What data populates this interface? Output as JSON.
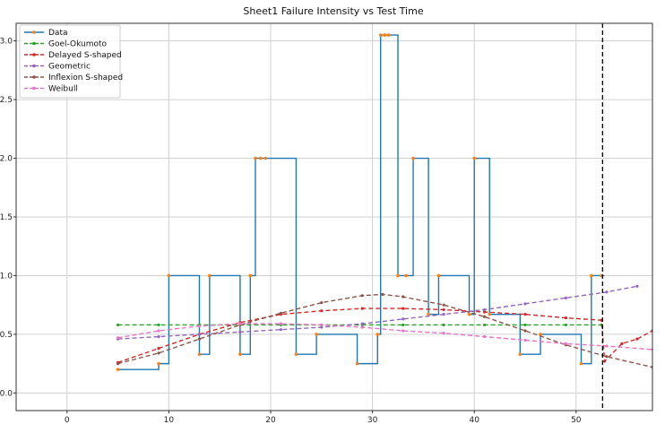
{
  "chart_data": {
    "type": "line",
    "title": "Sheet1 Failure Intensity vs Test Time",
    "xlabel": "",
    "ylabel": "",
    "xlim": [
      -5,
      57.5
    ],
    "ylim": [
      -0.15,
      3.15
    ],
    "x_ticks": [
      0,
      10,
      20,
      30,
      40,
      50
    ],
    "y_ticks": [
      0.0,
      0.5,
      1.0,
      1.5,
      2.0,
      2.5,
      3.0
    ],
    "x_tick_labels": [
      "0",
      "10",
      "20",
      "30",
      "40",
      "50"
    ],
    "y_tick_labels": [
      "0.0",
      "0.5",
      "1.0",
      "1.5",
      "2.0",
      "2.5",
      "3.0"
    ],
    "grid": true,
    "legend_position": "top-left",
    "vertical_line": {
      "x": 52.6,
      "style": "dashed",
      "color": "#000000"
    },
    "series": [
      {
        "name": "Data",
        "style": "step",
        "color": "#1f77b4",
        "marker_color": "#ff7f0e",
        "points": [
          [
            5,
            0.2
          ],
          [
            9,
            0.25
          ],
          [
            10,
            1.0
          ],
          [
            13,
            0.33
          ],
          [
            14,
            1.0
          ],
          [
            17,
            0.33
          ],
          [
            18,
            1.0
          ],
          [
            18.5,
            2.0
          ],
          [
            19,
            2.0
          ],
          [
            19.5,
            2.0
          ],
          [
            22.5,
            0.33
          ],
          [
            24.5,
            0.5
          ],
          [
            28.5,
            0.25
          ],
          [
            30.5,
            0.5
          ],
          [
            30.8,
            3.05
          ],
          [
            31.2,
            3.05
          ],
          [
            31.6,
            3.05
          ],
          [
            32.5,
            1.0
          ],
          [
            33.3,
            1.0
          ],
          [
            34,
            2.0
          ],
          [
            35.5,
            0.67
          ],
          [
            36.5,
            1.0
          ],
          [
            39.5,
            0.67
          ],
          [
            40,
            2.0
          ],
          [
            41.5,
            0.67
          ],
          [
            44.5,
            0.33
          ],
          [
            46.5,
            0.5
          ],
          [
            50.5,
            0.25
          ],
          [
            51.5,
            1.0
          ],
          [
            52.5,
            1.0
          ]
        ]
      },
      {
        "name": "Goel-Okumoto",
        "style": "dashed",
        "color": "#2ca02c",
        "points": [
          [
            5,
            0.58
          ],
          [
            9,
            0.58
          ],
          [
            13,
            0.58
          ],
          [
            17,
            0.58
          ],
          [
            21,
            0.58
          ],
          [
            25,
            0.58
          ],
          [
            29,
            0.58
          ],
          [
            33,
            0.58
          ],
          [
            37,
            0.58
          ],
          [
            41,
            0.58
          ],
          [
            45,
            0.58
          ],
          [
            49,
            0.58
          ],
          [
            52.5,
            0.58
          ]
        ]
      },
      {
        "name": "Delayed S-shaped",
        "style": "dashed",
        "color": "#d62728",
        "points": [
          [
            5,
            0.26
          ],
          [
            9,
            0.38
          ],
          [
            13,
            0.5
          ],
          [
            17,
            0.6
          ],
          [
            21,
            0.67
          ],
          [
            25,
            0.7
          ],
          [
            29,
            0.72
          ],
          [
            33,
            0.72
          ],
          [
            37,
            0.71
          ],
          [
            41,
            0.69
          ],
          [
            45,
            0.67
          ],
          [
            49,
            0.64
          ],
          [
            52.5,
            0.62
          ],
          [
            52.8,
            0.27
          ],
          [
            54.5,
            0.42
          ],
          [
            56,
            0.46
          ],
          [
            57.5,
            0.53
          ]
        ]
      },
      {
        "name": "Geometric",
        "style": "dashed",
        "color": "#9467bd",
        "points": [
          [
            5,
            0.46
          ],
          [
            9,
            0.48
          ],
          [
            13,
            0.5
          ],
          [
            17,
            0.52
          ],
          [
            21,
            0.54
          ],
          [
            25,
            0.56
          ],
          [
            29,
            0.59
          ],
          [
            33,
            0.63
          ],
          [
            37,
            0.67
          ],
          [
            41,
            0.71
          ],
          [
            45,
            0.76
          ],
          [
            49,
            0.81
          ],
          [
            53,
            0.86
          ],
          [
            56,
            0.91
          ]
        ]
      },
      {
        "name": "Inflexion S-shaped",
        "style": "dashed",
        "color": "#8c564b",
        "points": [
          [
            5,
            0.25
          ],
          [
            9,
            0.34
          ],
          [
            13,
            0.46
          ],
          [
            17,
            0.58
          ],
          [
            21,
            0.68
          ],
          [
            25,
            0.77
          ],
          [
            29,
            0.83
          ],
          [
            31,
            0.84
          ],
          [
            33,
            0.82
          ],
          [
            37,
            0.75
          ],
          [
            41,
            0.65
          ],
          [
            45,
            0.53
          ],
          [
            49,
            0.41
          ],
          [
            53,
            0.31
          ],
          [
            57.5,
            0.22
          ]
        ]
      },
      {
        "name": "Weibull",
        "style": "dashed",
        "color": "#e377c2",
        "points": [
          [
            5,
            0.47
          ],
          [
            9,
            0.53
          ],
          [
            13,
            0.57
          ],
          [
            17,
            0.59
          ],
          [
            21,
            0.59
          ],
          [
            25,
            0.58
          ],
          [
            29,
            0.56
          ],
          [
            33,
            0.53
          ],
          [
            37,
            0.51
          ],
          [
            41,
            0.48
          ],
          [
            45,
            0.45
          ],
          [
            49,
            0.42
          ],
          [
            53,
            0.4
          ],
          [
            57.5,
            0.37
          ]
        ]
      }
    ]
  }
}
